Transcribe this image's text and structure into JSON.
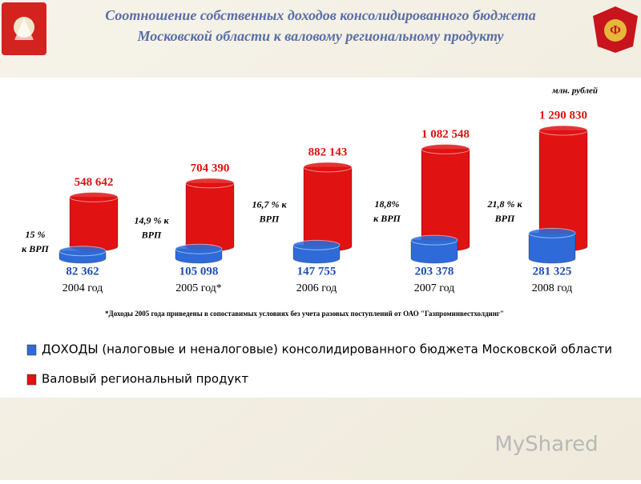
{
  "chart_data": {
    "type": "cylinder",
    "title": [
      "Соотношение собственных доходов консолидированного бюджета",
      "Московской области к валовому региональному продукту"
    ],
    "unit_label": "млн. рублей",
    "categories": [
      "2004 год",
      "2005 год*",
      "2006 год",
      "2007 год",
      "2008 год"
    ],
    "series": [
      {
        "name": "ДОХОДЫ (налоговые и неналоговые) консолидированного бюджета Московской области",
        "color": "#2e6bd8",
        "values": [
          82362,
          105098,
          147755,
          203378,
          281325
        ],
        "value_labels": [
          "82 362",
          "105 098",
          "147 755",
          "203 378",
          "281 325"
        ]
      },
      {
        "name": "Валовый региональный продукт",
        "color": "#e01212",
        "values": [
          548642,
          704390,
          882143,
          1082548,
          1290830
        ],
        "value_labels": [
          "548 642",
          "704 390",
          "882 143",
          "1 082 548",
          "1 290 830"
        ]
      }
    ],
    "share_labels": [
      [
        "15 %",
        "к ВРП"
      ],
      [
        "14,9 % к",
        "ВРП"
      ],
      [
        "16,7 % к",
        "ВРП"
      ],
      [
        "18,8%",
        "к ВРП"
      ],
      [
        "21,8 % к",
        "ВРП"
      ]
    ],
    "footnote": "*Доходы 2005 года приведены в сопоставимых условиях без учета разовых поступлений от ОАО \"Газпроминвестхолдинг\"",
    "watermark": "MyShared"
  }
}
